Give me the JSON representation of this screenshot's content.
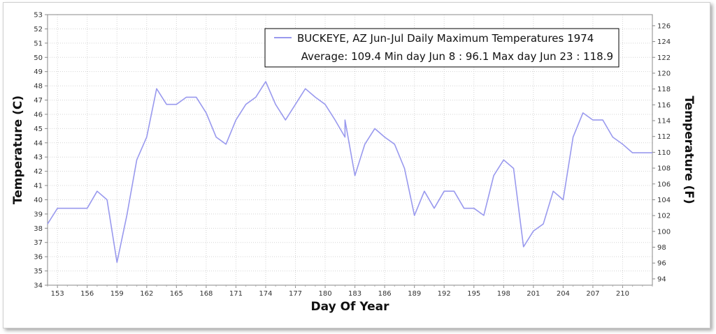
{
  "chart_data": {
    "type": "line",
    "title": "",
    "xlabel": "Day Of Year",
    "ylabel_left": "Temperature (C)",
    "ylabel_right": "Temperature (F)",
    "xlim": [
      152,
      213
    ],
    "ylim": [
      34,
      53
    ],
    "y2lim": [
      93.2,
      127.4
    ],
    "grid": true,
    "legend_placement": "top-right",
    "x_ticks": [
      153,
      156,
      159,
      162,
      165,
      168,
      171,
      174,
      177,
      180,
      183,
      186,
      189,
      192,
      195,
      198,
      201,
      204,
      207,
      210
    ],
    "y_ticks": [
      34,
      35,
      36,
      37,
      38,
      39,
      40,
      41,
      42,
      43,
      44,
      45,
      46,
      47,
      48,
      49,
      50,
      51,
      52,
      53
    ],
    "y2_ticks": [
      94,
      96,
      98,
      100,
      102,
      104,
      106,
      108,
      110,
      112,
      114,
      116,
      118,
      120,
      122,
      124,
      126
    ],
    "series": [
      {
        "name": "BUCKEYE, AZ  Jun-Jul  Daily Maximum Temperatures 1974",
        "color": "#9999ee",
        "x": [
          152,
          153,
          154,
          155,
          156,
          157,
          158,
          159,
          160,
          161,
          162,
          163,
          164,
          165,
          166,
          167,
          168,
          169,
          170,
          171,
          172,
          173,
          174,
          175,
          176,
          177,
          178,
          179,
          180,
          181,
          182,
          182,
          183,
          184,
          185,
          186,
          187,
          188,
          189,
          190,
          191,
          192,
          193,
          194,
          195,
          196,
          197,
          198,
          199,
          200,
          201,
          202,
          203,
          204,
          205,
          206,
          207,
          208,
          209,
          210,
          211,
          212,
          213
        ],
        "y": [
          38.3,
          39.4,
          39.4,
          39.4,
          39.4,
          40.6,
          40.0,
          35.6,
          38.9,
          42.8,
          44.4,
          47.8,
          46.7,
          46.7,
          47.2,
          47.2,
          46.1,
          44.4,
          43.9,
          45.6,
          46.7,
          47.2,
          48.3,
          46.7,
          45.6,
          46.7,
          47.8,
          47.2,
          46.7,
          45.6,
          44.4,
          45.6,
          41.7,
          43.9,
          45.0,
          44.4,
          43.9,
          42.2,
          38.9,
          40.6,
          39.4,
          40.6,
          40.6,
          39.4,
          39.4,
          38.9,
          41.7,
          42.8,
          42.2,
          36.7,
          37.8,
          38.3,
          40.6,
          40.0,
          44.4,
          46.1,
          45.6,
          45.6,
          44.4,
          43.9,
          43.3,
          43.3,
          43.3
        ]
      }
    ],
    "legend": {
      "line1": "BUCKEYE, AZ  Jun-Jul  Daily Maximum Temperatures 1974",
      "line2": "Average: 109.4  Min day Jun 8 : 96.1  Max day Jun 23 : 118.9"
    }
  }
}
